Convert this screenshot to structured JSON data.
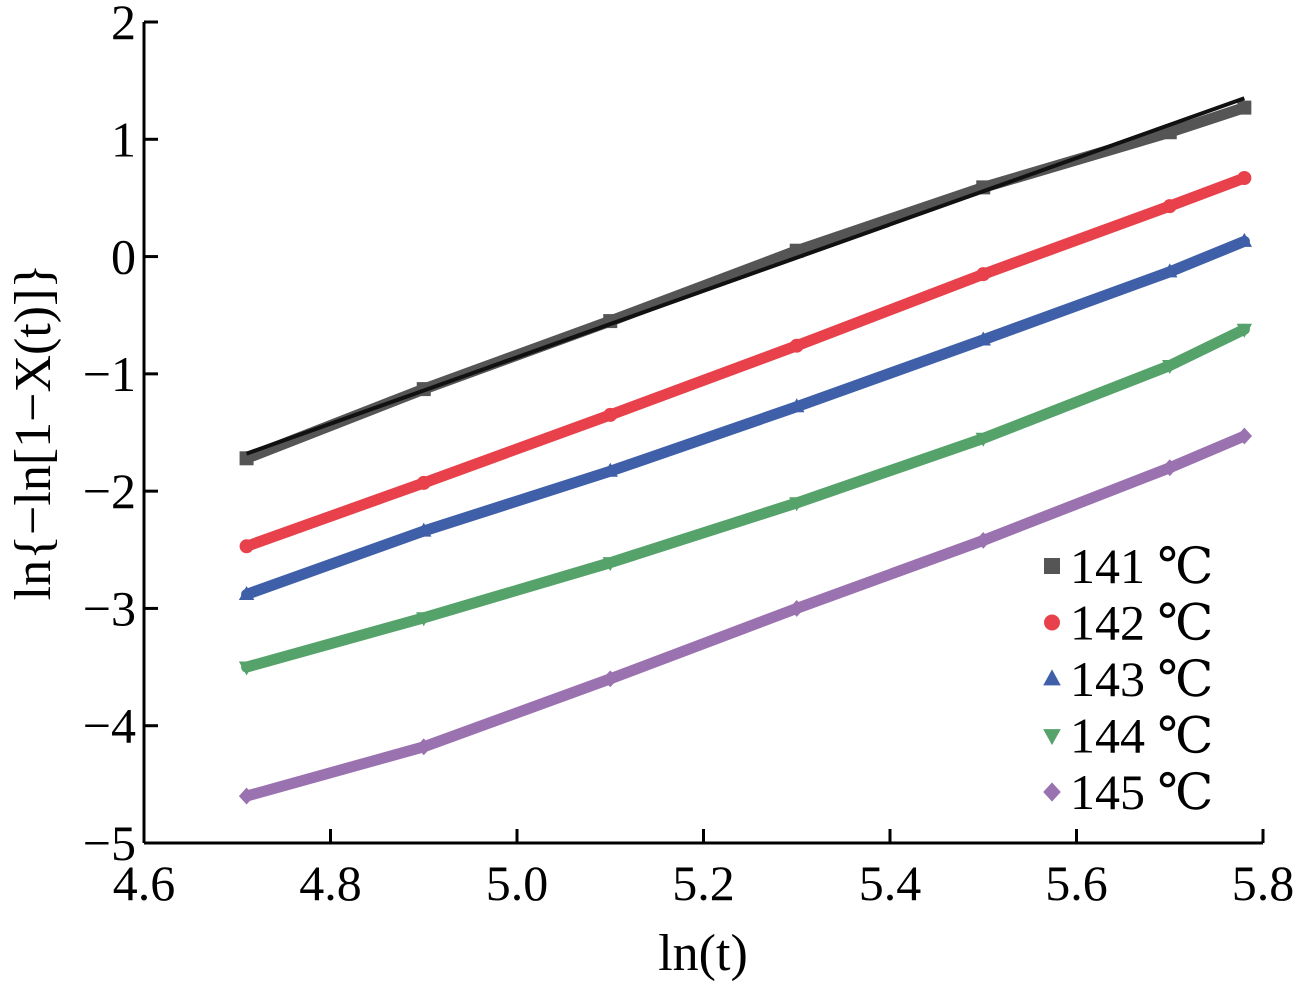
{
  "chart_data": {
    "type": "line",
    "title": "",
    "xlabel": "ln(t)",
    "ylabel": "ln{−ln[1−X(t)]}",
    "xlim": [
      4.6,
      5.8
    ],
    "ylim": [
      -5,
      2
    ],
    "x_ticks": [
      4.6,
      4.8,
      5.0,
      5.2,
      5.4,
      5.6,
      5.8
    ],
    "x_tick_labels": [
      "4.6",
      "4.8",
      "5.0",
      "5.2",
      "5.4",
      "5.6",
      "5.8"
    ],
    "y_ticks": [
      -5,
      -4,
      -3,
      -2,
      -1,
      0,
      1,
      2
    ],
    "y_tick_labels": [
      "−5",
      "−4",
      "−3",
      "−2",
      "−1",
      "0",
      "1",
      "2"
    ],
    "grid": false,
    "legend_position": "bottom-right",
    "series": [
      {
        "name": "141 ℃",
        "color": "#555555",
        "marker": "square",
        "x": [
          4.71,
          4.9,
          5.1,
          5.3,
          5.5,
          5.7,
          5.78
        ],
        "y": [
          -1.72,
          -1.13,
          -0.55,
          0.05,
          0.59,
          1.06,
          1.27
        ]
      },
      {
        "name": "142 ℃",
        "color": "#e8414b",
        "marker": "circle",
        "x": [
          4.71,
          4.9,
          5.1,
          5.3,
          5.5,
          5.7,
          5.78
        ],
        "y": [
          -2.47,
          -1.93,
          -1.35,
          -0.76,
          -0.15,
          0.43,
          0.67
        ]
      },
      {
        "name": "143 ℃",
        "color": "#3f5fa8",
        "marker": "triangle-up",
        "x": [
          4.71,
          4.9,
          5.1,
          5.3,
          5.5,
          5.7,
          5.78
        ],
        "y": [
          -2.88,
          -2.34,
          -1.83,
          -1.28,
          -0.71,
          -0.13,
          0.13
        ]
      },
      {
        "name": "144 ℃",
        "color": "#55a36a",
        "marker": "triangle-down",
        "x": [
          4.71,
          4.9,
          5.1,
          5.3,
          5.5,
          5.7,
          5.78
        ],
        "y": [
          -3.5,
          -3.08,
          -2.61,
          -2.1,
          -1.55,
          -0.93,
          -0.62
        ]
      },
      {
        "name": "145 ℃",
        "color": "#9b72b0",
        "marker": "diamond",
        "x": [
          4.71,
          4.9,
          5.1,
          5.3,
          5.5,
          5.7,
          5.78
        ],
        "y": [
          -4.6,
          -4.18,
          -3.6,
          -3.0,
          -2.42,
          -1.8,
          -1.53
        ]
      }
    ],
    "fit_lines": [
      {
        "series": "141 ℃",
        "color": "#111111",
        "x": [
          4.71,
          5.78
        ],
        "y": [
          -1.68,
          1.35
        ]
      }
    ]
  }
}
